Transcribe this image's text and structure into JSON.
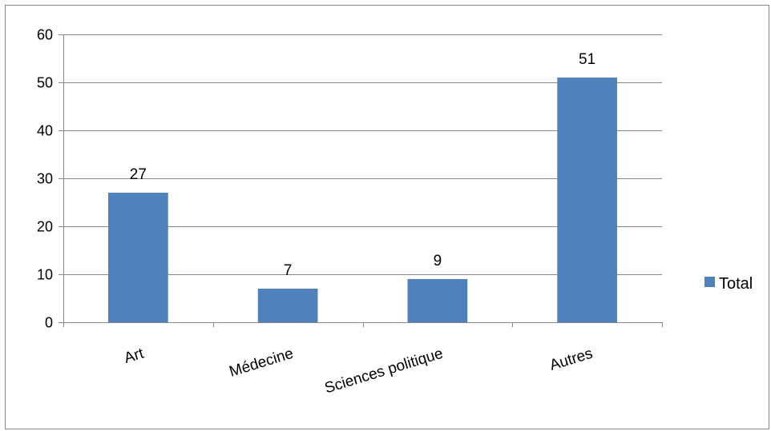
{
  "chart_data": {
    "type": "bar",
    "categories": [
      "Art",
      "Médecine",
      "Sciences politique",
      "Autres"
    ],
    "series": [
      {
        "name": "Total",
        "values": [
          27,
          7,
          9,
          51
        ],
        "color": "#4f81bd"
      }
    ],
    "data_labels": [
      "27",
      "7",
      "9",
      "51"
    ],
    "ylim": [
      0,
      60
    ],
    "yticks": [
      0,
      10,
      20,
      30,
      40,
      50,
      60
    ],
    "title": "",
    "xlabel": "",
    "ylabel": "",
    "grid": true,
    "legend_position": "right",
    "colors": {
      "grid": "#868686",
      "axis": "#868686",
      "bar": "#4f81bd"
    }
  }
}
